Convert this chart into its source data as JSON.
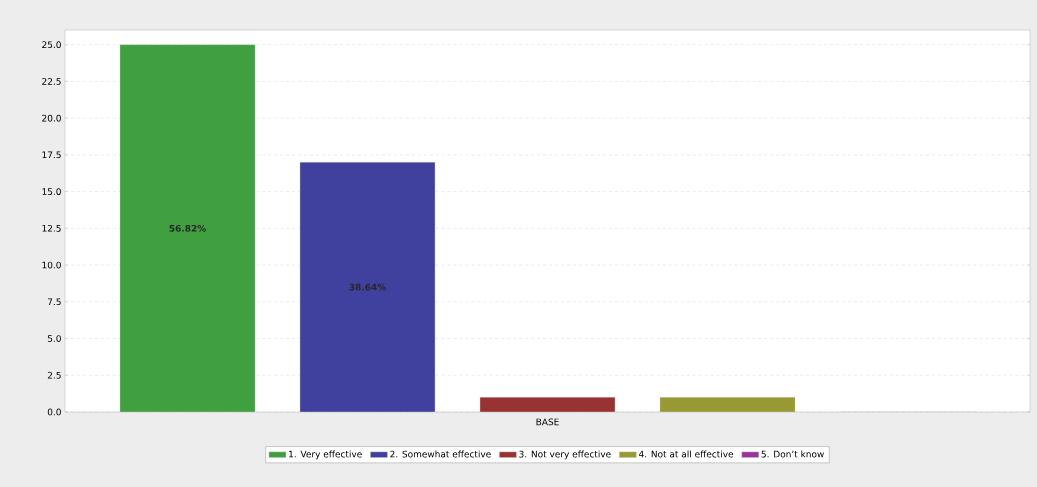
{
  "chart_data": {
    "type": "bar",
    "categories": [
      "BASE"
    ],
    "series": [
      {
        "name": "1. Very effective",
        "color": "#40a040",
        "values": [
          25
        ]
      },
      {
        "name": "2. Somewhat effective",
        "color": "#40409f",
        "values": [
          17
        ]
      },
      {
        "name": "3. Not very effective",
        "color": "#993333",
        "values": [
          1
        ]
      },
      {
        "name": "4. Not at all effective",
        "color": "#999933",
        "values": [
          1
        ]
      },
      {
        "name": "5. Don’t know",
        "color": "#993399",
        "values": [
          0
        ]
      }
    ],
    "annotations": [
      "56.82%",
      "38.64%"
    ],
    "ylim": [
      0,
      26
    ],
    "yticks": [
      {
        "value": 0,
        "label": "0.0"
      },
      {
        "value": 2.5,
        "label": "2.5"
      },
      {
        "value": 5,
        "label": "5.0"
      },
      {
        "value": 7.5,
        "label": "7.5"
      },
      {
        "value": 10,
        "label": "10.0"
      },
      {
        "value": 12.5,
        "label": "12.5"
      },
      {
        "value": 15,
        "label": "15.0"
      },
      {
        "value": 17.5,
        "label": "17.5"
      },
      {
        "value": 20,
        "label": "20.0"
      },
      {
        "value": 22.5,
        "label": "22.5"
      },
      {
        "value": 25,
        "label": "25.0"
      }
    ],
    "grid": "y",
    "legend": "bottom"
  }
}
